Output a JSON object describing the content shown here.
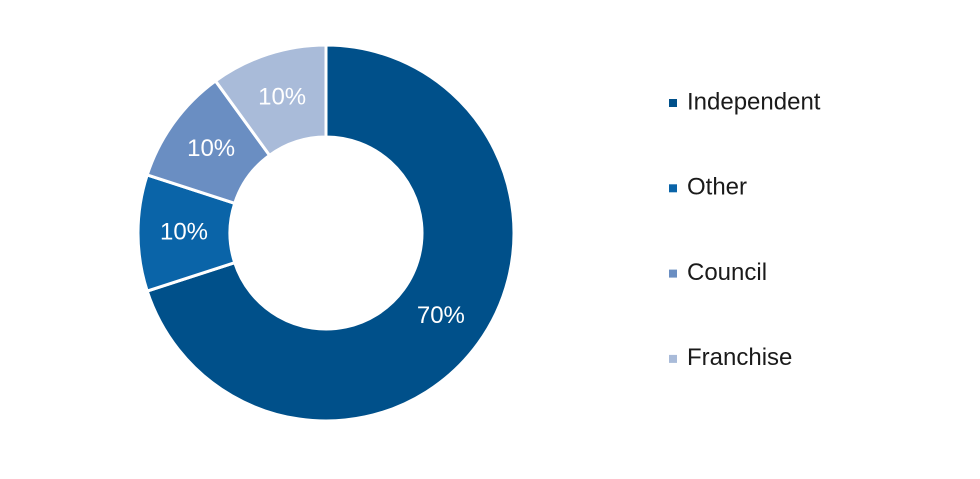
{
  "chart_data": {
    "type": "donut",
    "categories": [
      "Independent",
      "Other",
      "Council",
      "Franchise"
    ],
    "values": [
      70,
      10,
      10,
      10
    ],
    "value_labels": [
      "70%",
      "10%",
      "10%",
      "10%"
    ],
    "colors": [
      "#00508a",
      "#0a64a8",
      "#6a8ec2",
      "#a9bbd9"
    ],
    "legend": "right"
  }
}
